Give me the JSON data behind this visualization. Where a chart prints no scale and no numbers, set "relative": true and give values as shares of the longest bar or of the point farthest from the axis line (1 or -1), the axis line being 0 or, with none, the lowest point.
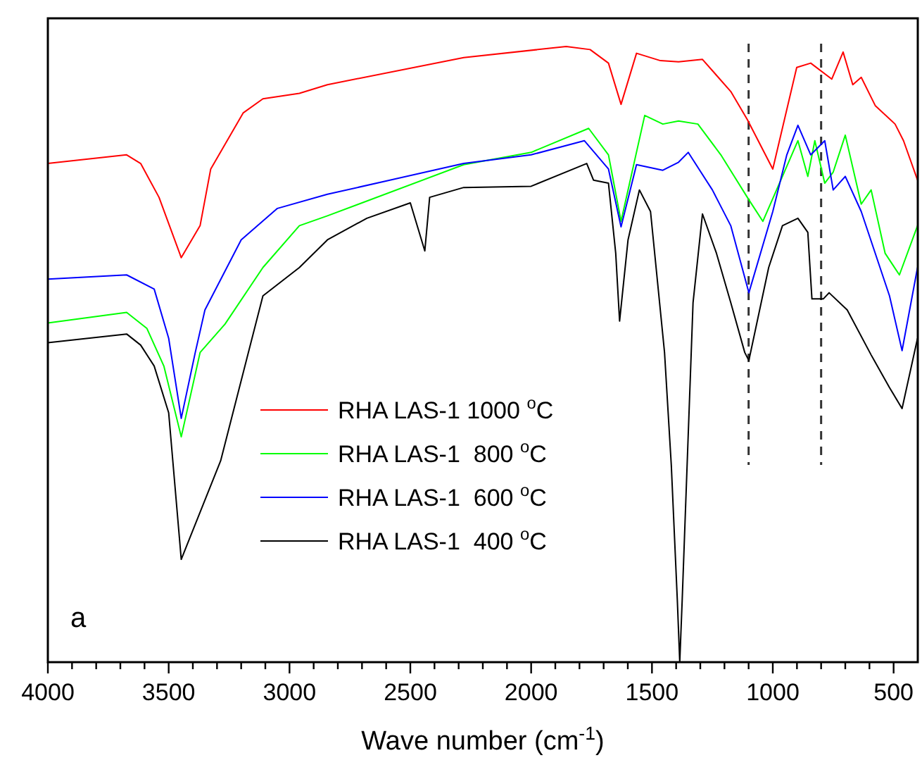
{
  "chart_data": {
    "type": "line",
    "relative": true,
    "xlabel": "Wave number (cm$^{-1}$)",
    "xlim": [
      4000,
      400
    ],
    "xticks": [
      4000,
      {
        "value": 3900,
        "label": null
      },
      {
        "value": 3800,
        "label": null
      },
      {
        "value": 3700,
        "label": null
      },
      {
        "value": 3600,
        "label": null
      },
      3500,
      {
        "value": 3400,
        "label": null
      },
      {
        "value": 3300,
        "label": null
      },
      {
        "value": 3200,
        "label": null
      },
      {
        "value": 3100,
        "label": null
      },
      3000,
      {
        "value": 2900,
        "label": null
      },
      {
        "value": 2800,
        "label": null
      },
      {
        "value": 2700,
        "label": null
      },
      {
        "value": 2600,
        "label": null
      },
      2500,
      {
        "value": 2400,
        "label": null
      },
      {
        "value": 2300,
        "label": null
      },
      {
        "value": 2200,
        "label": null
      },
      {
        "value": 2100,
        "label": null
      },
      2000,
      {
        "value": 1900,
        "label": null
      },
      {
        "value": 1800,
        "label": null
      },
      {
        "value": 1700,
        "label": null
      },
      {
        "value": 1600,
        "label": null
      },
      1500,
      {
        "value": 1400,
        "label": null
      },
      {
        "value": 1300,
        "label": null
      },
      {
        "value": 1200,
        "label": null
      },
      {
        "value": 1100,
        "label": null
      },
      1000,
      {
        "value": 900,
        "label": null
      },
      {
        "value": 800,
        "label": null
      },
      {
        "value": 700,
        "label": null
      },
      {
        "value": 600,
        "label": null
      },
      500
    ],
    "grid": false,
    "legend": "bottom",
    "marker": "none",
    "line_style": "solid",
    "annotations": [
      "a"
    ],
    "ref_lines": [
      {
        "axis": "x",
        "value": 1100,
        "color": "#333333",
        "line_style": "dashed"
      },
      {
        "axis": "x",
        "value": 800,
        "color": "#333333",
        "line_style": "dashed"
      }
    ],
    "series": [
      {
        "name": "RHA LAS-1 1000 $^{o}$C",
        "color": "#ff0000",
        "x": [
          4000,
          3674,
          3616,
          3540,
          3448,
          3370,
          3326,
          3192,
          3110,
          2959,
          2843,
          2279,
          1855,
          1756,
          1680,
          1628,
          1564,
          1465,
          1390,
          1291,
          1174,
          1105,
          1000,
          901,
          843,
          756,
          709,
          669,
          634,
          576,
          494,
          459,
          401
        ],
        "values": [
          0.81,
          0.824,
          0.81,
          0.755,
          0.657,
          0.709,
          0.801,
          0.892,
          0.915,
          0.924,
          0.938,
          0.982,
          1,
          0.995,
          0.973,
          0.906,
          0.989,
          0.977,
          0.975,
          0.979,
          0.927,
          0.881,
          0.801,
          0.966,
          0.973,
          0.947,
          0.991,
          0.938,
          0.95,
          0.904,
          0.874,
          0.847,
          0.783
        ]
      },
      {
        "name": "RHA LAS-1  800 $^{o}$C",
        "color": "#00ff00",
        "x": [
          4000,
          3674,
          3590,
          3520,
          3448,
          3370,
          3267,
          3110,
          2959,
          2843,
          2279,
          2000,
          1762,
          1680,
          1628,
          1530,
          1455,
          1390,
          1310,
          1215,
          1099,
          1041,
          960,
          896,
          855,
          826,
          785,
          750,
          700,
          634,
          593,
          535,
          476,
          401
        ],
        "values": [
          0.551,
          0.568,
          0.542,
          0.481,
          0.366,
          0.503,
          0.549,
          0.641,
          0.709,
          0.725,
          0.808,
          0.828,
          0.867,
          0.824,
          0.716,
          0.888,
          0.874,
          0.879,
          0.874,
          0.824,
          0.751,
          0.716,
          0.789,
          0.847,
          0.789,
          0.847,
          0.778,
          0.796,
          0.856,
          0.744,
          0.767,
          0.664,
          0.629,
          0.709
        ]
      },
      {
        "name": "RHA LAS-1  600 $^{o}$C",
        "color": "#0000ff",
        "x": [
          4000,
          3674,
          3560,
          3500,
          3448,
          3390,
          3350,
          3200,
          3050,
          2843,
          2279,
          2000,
          1780,
          1680,
          1628,
          1564,
          1455,
          1390,
          1350,
          1250,
          1174,
          1099,
          1000,
          942,
          896,
          843,
          785,
          750,
          700,
          634,
          517,
          465,
          401
        ],
        "values": [
          0.622,
          0.629,
          0.606,
          0.526,
          0.396,
          0.503,
          0.572,
          0.686,
          0.737,
          0.76,
          0.81,
          0.824,
          0.847,
          0.801,
          0.707,
          0.808,
          0.799,
          0.812,
          0.828,
          0.767,
          0.709,
          0.6,
          0.732,
          0.824,
          0.872,
          0.824,
          0.847,
          0.767,
          0.789,
          0.732,
          0.595,
          0.506,
          0.641
        ]
      },
      {
        "name": "RHA LAS-1  400 $^{o}$C",
        "color": "#000000",
        "x": [
          4000,
          3674,
          3616,
          3560,
          3500,
          3448,
          3285,
          3210,
          3110,
          2959,
          2843,
          2680,
          2500,
          2440,
          2420,
          2279,
          2000,
          1770,
          1742,
          1680,
          1650,
          1634,
          1599,
          1552,
          1506,
          1448,
          1420,
          1395,
          1385,
          1375,
          1330,
          1291,
          1233,
          1174,
          1116,
          1099,
          1017,
          960,
          896,
          855,
          838,
          791,
          767,
          692,
          593,
          517,
          465,
          401
        ],
        "values": [
          0.519,
          0.533,
          0.515,
          0.481,
          0.405,
          0.167,
          0.327,
          0.442,
          0.595,
          0.641,
          0.686,
          0.721,
          0.746,
          0.668,
          0.755,
          0.771,
          0.773,
          0.81,
          0.783,
          0.778,
          0.664,
          0.554,
          0.686,
          0.767,
          0.732,
          0.503,
          0.32,
          0.1,
          0,
          0.1,
          0.584,
          0.728,
          0.664,
          0.584,
          0.503,
          0.49,
          0.641,
          0.709,
          0.721,
          0.698,
          0.59,
          0.59,
          0.6,
          0.572,
          0.499,
          0.446,
          0.412,
          0.526
        ]
      }
    ]
  }
}
